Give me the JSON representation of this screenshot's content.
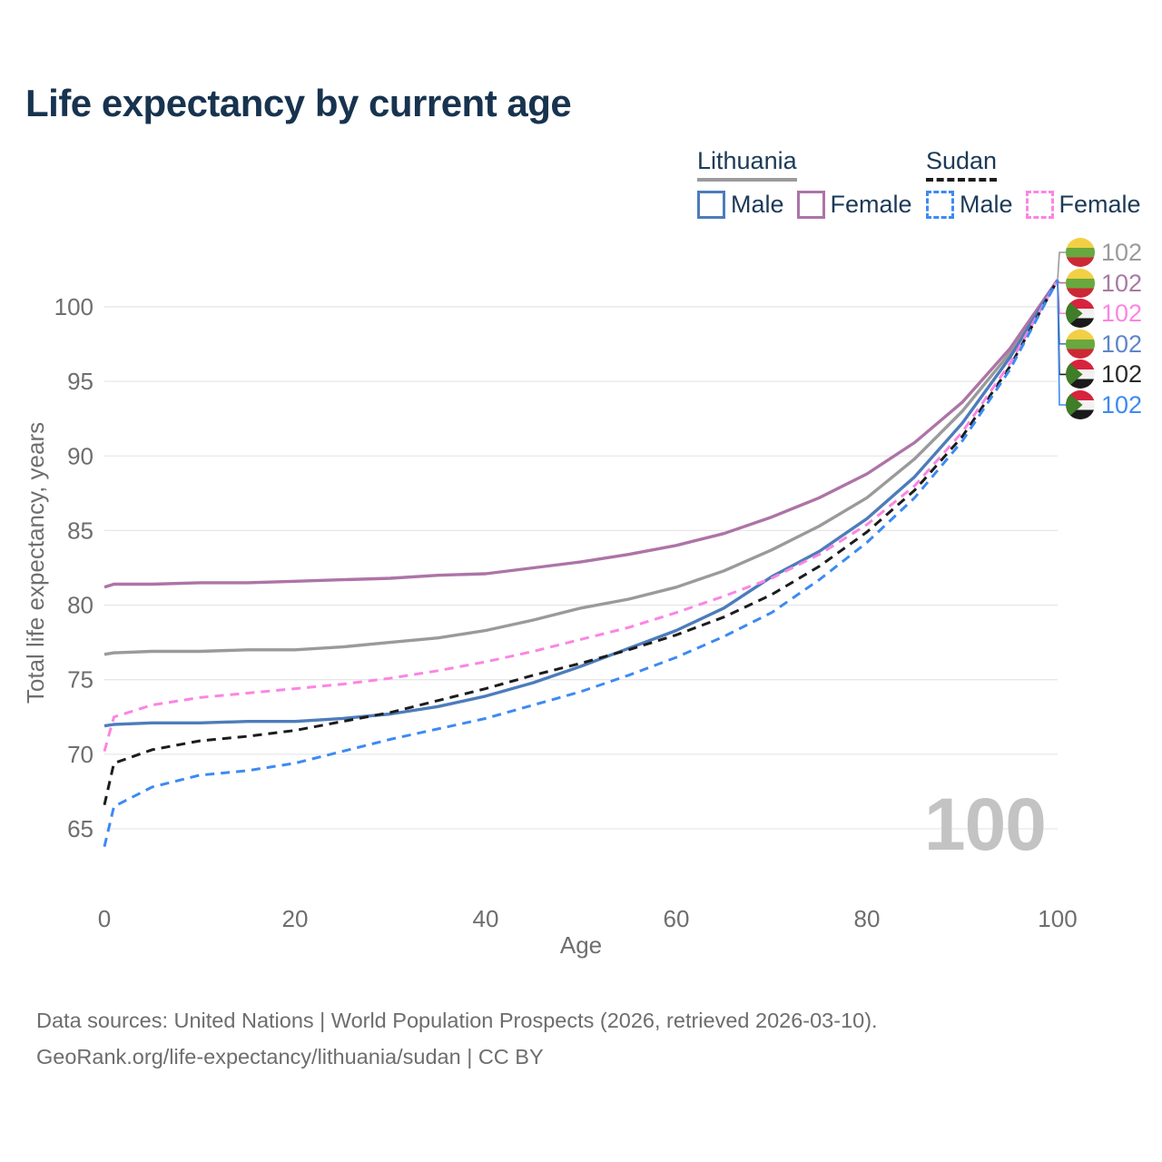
{
  "title": "Life expectancy by current age",
  "watermark": "100",
  "legend": {
    "groups": [
      {
        "country": "Lithuania",
        "line_style": "solid",
        "line_color": "#9b9b9b",
        "items": [
          {
            "label": "Male",
            "color": "#4d7cba",
            "dashed": false
          },
          {
            "label": "Female",
            "color": "#ad74a6",
            "dashed": false
          }
        ]
      },
      {
        "country": "Sudan",
        "line_style": "dashed",
        "line_color": "#1c1c1c",
        "items": [
          {
            "label": "Male",
            "color": "#3d8af2",
            "dashed": true
          },
          {
            "label": "Female",
            "color": "#fb85e3",
            "dashed": true
          }
        ]
      }
    ]
  },
  "chart_data": {
    "type": "line",
    "title": "Life expectancy by current age",
    "xlabel": "Age",
    "ylabel": "Total life expectancy, years",
    "xlim": [
      0,
      100
    ],
    "ylim": [
      63,
      103
    ],
    "x_ticks": [
      0,
      20,
      40,
      60,
      80,
      100
    ],
    "y_ticks": [
      65,
      70,
      75,
      80,
      85,
      90,
      95,
      100
    ],
    "grid": "horizontal",
    "legend_position": "top-right",
    "ages": [
      0,
      1,
      5,
      10,
      15,
      20,
      25,
      30,
      35,
      40,
      45,
      50,
      55,
      60,
      65,
      70,
      75,
      80,
      85,
      90,
      95,
      100
    ],
    "series": [
      {
        "id": "lithuania-all",
        "name": "Lithuania",
        "color": "#9a9a9a",
        "dashed": false,
        "values": [
          76.7,
          76.8,
          76.9,
          76.9,
          77.0,
          77.0,
          77.2,
          77.5,
          77.8,
          78.3,
          79.0,
          79.8,
          80.4,
          81.2,
          82.3,
          83.7,
          85.3,
          87.2,
          89.8,
          93.0,
          96.9,
          101.8
        ]
      },
      {
        "id": "lithuania-female",
        "name": "Lithuania Female",
        "color": "#ad74a6",
        "dashed": false,
        "values": [
          81.2,
          81.4,
          81.4,
          81.5,
          81.5,
          81.6,
          81.7,
          81.8,
          82.0,
          82.1,
          82.5,
          82.9,
          83.4,
          84.0,
          84.8,
          85.9,
          87.2,
          88.8,
          90.9,
          93.6,
          97.2,
          101.8
        ]
      },
      {
        "id": "lithuania-male",
        "name": "Lithuania Male",
        "color": "#4d7cba",
        "dashed": false,
        "values": [
          71.9,
          72.0,
          72.1,
          72.1,
          72.2,
          72.2,
          72.4,
          72.7,
          73.2,
          73.9,
          74.8,
          75.9,
          77.1,
          78.3,
          79.8,
          81.9,
          83.6,
          85.8,
          88.6,
          92.2,
          96.6,
          101.8
        ]
      },
      {
        "id": "sudan-all",
        "name": "Sudan",
        "color": "#1c1c1c",
        "dashed": true,
        "values": [
          66.6,
          69.4,
          70.3,
          70.9,
          71.2,
          71.6,
          72.2,
          72.8,
          73.6,
          74.4,
          75.3,
          76.1,
          77.0,
          78.0,
          79.2,
          80.7,
          82.6,
          84.9,
          87.7,
          91.3,
          96.0,
          101.8
        ]
      },
      {
        "id": "sudan-female",
        "name": "Sudan Female",
        "color": "#fb85e3",
        "dashed": true,
        "values": [
          70.2,
          72.5,
          73.3,
          73.8,
          74.1,
          74.4,
          74.7,
          75.1,
          75.6,
          76.2,
          76.9,
          77.7,
          78.5,
          79.5,
          80.6,
          81.8,
          83.4,
          85.4,
          88.0,
          91.6,
          96.2,
          101.8
        ]
      },
      {
        "id": "sudan-male",
        "name": "Sudan Male",
        "color": "#3d8af2",
        "dashed": true,
        "values": [
          63.8,
          66.5,
          67.8,
          68.6,
          68.9,
          69.4,
          70.2,
          71.0,
          71.7,
          72.4,
          73.3,
          74.2,
          75.3,
          76.5,
          77.9,
          79.5,
          81.7,
          84.2,
          87.2,
          91.0,
          95.8,
          101.8
        ]
      }
    ]
  },
  "callouts": [
    {
      "series_index": 0,
      "flag": "lt",
      "flag_name": "lithuania-flag",
      "label": "102",
      "label_color": "#9b9b9b"
    },
    {
      "series_index": 1,
      "flag": "lt",
      "flag_name": "lithuania-flag",
      "label": "102",
      "label_color": "#a77ba3"
    },
    {
      "series_index": 4,
      "flag": "sd",
      "flag_name": "sudan-flag",
      "label": "102",
      "label_color": "#fb85e3"
    },
    {
      "series_index": 2,
      "flag": "lt",
      "flag_name": "lithuania-flag",
      "label": "102",
      "label_color": "#5e86c8"
    },
    {
      "series_index": 3,
      "flag": "sd",
      "flag_name": "sudan-flag",
      "label": "102",
      "label_color": "#2a2a2a"
    },
    {
      "series_index": 5,
      "flag": "sd",
      "flag_name": "sudan-flag",
      "label": "102",
      "label_color": "#3d8af2"
    }
  ],
  "footer": {
    "line1": "Data sources: United Nations | World Population Prospects (2026, retrieved 2026-03-10).",
    "line2": "GeoRank.org/life-expectancy/lithuania/sudan | CC BY"
  }
}
